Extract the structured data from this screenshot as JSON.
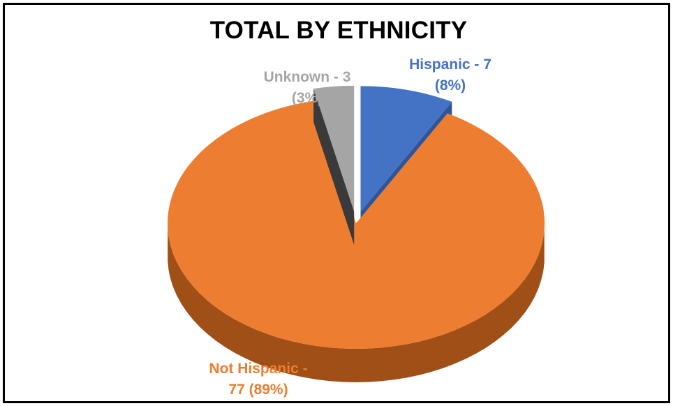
{
  "chart_data": {
    "type": "pie",
    "title": "TOTAL BY ETHNICITY",
    "slices": [
      {
        "name": "Hispanic",
        "value": 7,
        "percent": "8%",
        "label_line1": "Hispanic - 7",
        "label_line2": "(8%)",
        "color": "#4472C4",
        "side": "#2F5597",
        "exploded": true
      },
      {
        "name": "Not Hispanic",
        "value": 77,
        "percent": "89%",
        "label_line1": "Not Hispanic -",
        "label_line2": "77 (89%)",
        "color": "#ED7D31",
        "side": "#A04F16",
        "exploded": false
      },
      {
        "name": "Unknown",
        "value": 3,
        "percent": "3%",
        "label_line1": "Unknown - 3",
        "label_line2": "(3%)",
        "color": "#A5A5A5",
        "side": "#3A3A3A",
        "exploded": true
      }
    ],
    "legend": "none",
    "grid": false,
    "label_colors": {
      "Hispanic": "#4472C4",
      "Not Hispanic": "#ED7D31",
      "Unknown": "#A5A5A5"
    }
  }
}
